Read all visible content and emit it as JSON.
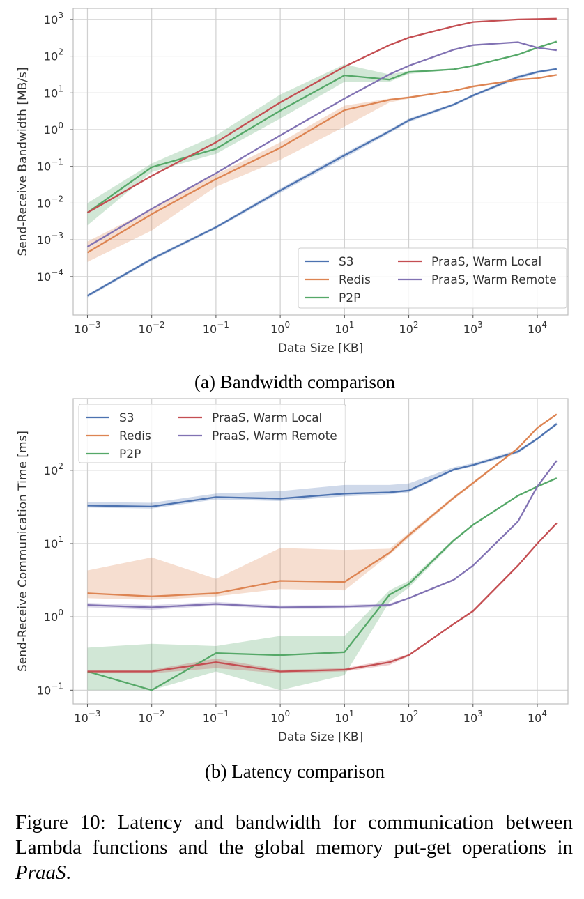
{
  "series_colors": {
    "S3": "#4c72b0",
    "Redis": "#dd8452",
    "P2P": "#55a868",
    "PraaS, Warm Local": "#c44e52",
    "PraaS, Warm Remote": "#8172b3"
  },
  "chart_data": [
    {
      "type": "line",
      "id": "bandwidth",
      "subcaption": "(a) Bandwidth comparison",
      "xlabel": "Data Size [KB]",
      "ylabel": "Send-Receive Bandwidth [MB/s]",
      "xscale": "log",
      "yscale": "log",
      "xlim": [
        0.0006,
        30000
      ],
      "ylim": [
        9e-06,
        2000
      ],
      "xticks": [
        0.001,
        0.01,
        0.1,
        1,
        10,
        100,
        1000,
        10000
      ],
      "xtick_labels": [
        [
          "10",
          "−3"
        ],
        [
          "10",
          "−2"
        ],
        [
          "10",
          "−1"
        ],
        [
          "10",
          "0"
        ],
        [
          "10",
          "1"
        ],
        [
          "10",
          "2"
        ],
        [
          "10",
          "3"
        ],
        [
          "10",
          "4"
        ]
      ],
      "yticks": [
        0.0001,
        0.001,
        0.01,
        0.1,
        1,
        10,
        100,
        1000
      ],
      "ytick_labels": [
        [
          "10",
          "−4"
        ],
        [
          "10",
          "−3"
        ],
        [
          "10",
          "−2"
        ],
        [
          "10",
          "−1"
        ],
        [
          "10",
          "0"
        ],
        [
          "10",
          "1"
        ],
        [
          "10",
          "2"
        ],
        [
          "10",
          "3"
        ]
      ],
      "grid": true,
      "legend": {
        "placement": "lower-right",
        "columns": 2
      },
      "x": [
        0.001,
        0.01,
        0.1,
        1,
        10,
        50,
        100,
        500,
        1000,
        5000,
        10000,
        20000
      ],
      "series": [
        {
          "name": "S3",
          "values": [
            3e-05,
            0.0003,
            0.0022,
            0.022,
            0.2,
            0.9,
            1.8,
            4.8,
            8.5,
            27,
            37,
            45
          ],
          "lower": [
            2.7e-05,
            0.00027,
            0.002,
            0.019,
            0.17,
            0.8,
            1.6,
            4.4,
            7.8,
            24,
            34,
            42
          ],
          "upper": [
            3.3e-05,
            0.00033,
            0.0024,
            0.025,
            0.23,
            1.0,
            2.0,
            5.2,
            9.2,
            30,
            40,
            48
          ]
        },
        {
          "name": "Redis",
          "values": [
            0.00045,
            0.005,
            0.045,
            0.32,
            3.4,
            6.5,
            7.5,
            11.5,
            15,
            23,
            25,
            31
          ],
          "lower": [
            0.00025,
            0.0018,
            0.028,
            0.15,
            1.2,
            5.5,
            7.0,
            11,
            14,
            22,
            24,
            30
          ],
          "upper": [
            0.0009,
            0.007,
            0.06,
            0.45,
            4.5,
            7.0,
            8.0,
            12,
            16,
            24,
            26,
            32
          ]
        },
        {
          "name": "P2P",
          "values": [
            0.0055,
            0.095,
            0.3,
            3.3,
            30,
            23,
            37,
            44,
            55,
            110,
            170,
            250
          ],
          "lower": [
            0.0025,
            0.07,
            0.22,
            2.0,
            20,
            20,
            33,
            42,
            52,
            105,
            160,
            240
          ],
          "upper": [
            0.01,
            0.12,
            0.7,
            9.0,
            60,
            32,
            40,
            46,
            58,
            115,
            180,
            260
          ]
        },
        {
          "name": "PraaS, Warm Local",
          "values": [
            0.0055,
            0.055,
            0.45,
            5.5,
            52,
            200,
            320,
            650,
            850,
            1000,
            1020,
            1050
          ]
        },
        {
          "name": "PraaS, Warm Remote",
          "values": [
            0.00065,
            0.007,
            0.065,
            0.7,
            7,
            32,
            55,
            150,
            200,
            240,
            170,
            145
          ]
        }
      ]
    },
    {
      "type": "line",
      "id": "latency",
      "subcaption": "(b) Latency comparison",
      "xlabel": "Data Size [KB]",
      "ylabel": "Send-Receive Communication Time [ms]",
      "xscale": "log",
      "yscale": "log",
      "xlim": [
        0.0006,
        30000
      ],
      "ylim": [
        0.065,
        950
      ],
      "xticks": [
        0.001,
        0.01,
        0.1,
        1,
        10,
        100,
        1000,
        10000
      ],
      "xtick_labels": [
        [
          "10",
          "−3"
        ],
        [
          "10",
          "−2"
        ],
        [
          "10",
          "−1"
        ],
        [
          "10",
          "0"
        ],
        [
          "10",
          "1"
        ],
        [
          "10",
          "2"
        ],
        [
          "10",
          "3"
        ],
        [
          "10",
          "4"
        ]
      ],
      "yticks": [
        0.1,
        1,
        10,
        100
      ],
      "ytick_labels": [
        [
          "10",
          "−1"
        ],
        [
          "10",
          "0"
        ],
        [
          "10",
          "1"
        ],
        [
          "10",
          "2"
        ]
      ],
      "grid": true,
      "legend": {
        "placement": "top-left",
        "columns": 2
      },
      "x": [
        0.001,
        0.01,
        0.1,
        1,
        10,
        50,
        100,
        500,
        1000,
        5000,
        10000,
        20000
      ],
      "series": [
        {
          "name": "S3",
          "values": [
            33,
            32,
            43,
            41,
            48,
            50,
            53,
            102,
            118,
            180,
            270,
            430
          ],
          "lower": [
            31,
            30,
            40,
            38,
            44,
            47,
            50,
            98,
            113,
            170,
            260,
            410
          ],
          "upper": [
            37,
            36,
            48,
            52,
            63,
            63,
            66,
            110,
            125,
            190,
            280,
            450
          ]
        },
        {
          "name": "Redis",
          "values": [
            2.1,
            1.9,
            2.1,
            3.1,
            3.0,
            7.5,
            13,
            42,
            67,
            200,
            380,
            580
          ],
          "lower": [
            1.8,
            1.7,
            1.9,
            2.4,
            2.3,
            7.0,
            12,
            40,
            64,
            195,
            370,
            570
          ],
          "upper": [
            4.3,
            6.5,
            3.3,
            8.7,
            8.2,
            8.5,
            14,
            44,
            70,
            205,
            390,
            590
          ]
        },
        {
          "name": "P2P",
          "values": [
            0.18,
            0.1,
            0.32,
            0.3,
            0.33,
            2.0,
            2.8,
            11,
            18,
            45,
            60,
            78
          ],
          "lower": [
            0.1,
            0.1,
            0.18,
            0.1,
            0.16,
            1.6,
            2.5,
            10.5,
            17.5,
            44,
            58,
            76
          ],
          "upper": [
            0.38,
            0.43,
            0.4,
            0.55,
            0.55,
            2.3,
            3.1,
            11.5,
            18.5,
            46,
            62,
            80
          ]
        },
        {
          "name": "PraaS, Warm Local",
          "values": [
            0.18,
            0.18,
            0.24,
            0.18,
            0.19,
            0.24,
            0.3,
            0.8,
            1.2,
            5,
            10,
            19
          ],
          "lower": [
            0.17,
            0.17,
            0.2,
            0.17,
            0.18,
            0.22,
            0.29,
            0.78,
            1.15,
            4.8,
            9.8,
            18.5
          ],
          "upper": [
            0.19,
            0.19,
            0.27,
            0.19,
            0.2,
            0.26,
            0.31,
            0.82,
            1.25,
            5.2,
            10.2,
            19.5
          ]
        },
        {
          "name": "PraaS, Warm Remote",
          "values": [
            1.45,
            1.35,
            1.5,
            1.35,
            1.38,
            1.45,
            1.8,
            3.2,
            5,
            20,
            60,
            135
          ],
          "lower": [
            1.35,
            1.25,
            1.42,
            1.28,
            1.3,
            1.38,
            1.75,
            3.1,
            4.9,
            19.5,
            58,
            132
          ],
          "upper": [
            1.55,
            1.45,
            1.6,
            1.43,
            1.46,
            1.52,
            1.85,
            3.3,
            5.1,
            20.5,
            62,
            138
          ]
        }
      ]
    }
  ],
  "caption": {
    "main": "Figure 10: Latency and bandwidth for communication between Lambda functions and the global memory put-get operations in ",
    "emphasis": "PraaS",
    "end": "."
  }
}
